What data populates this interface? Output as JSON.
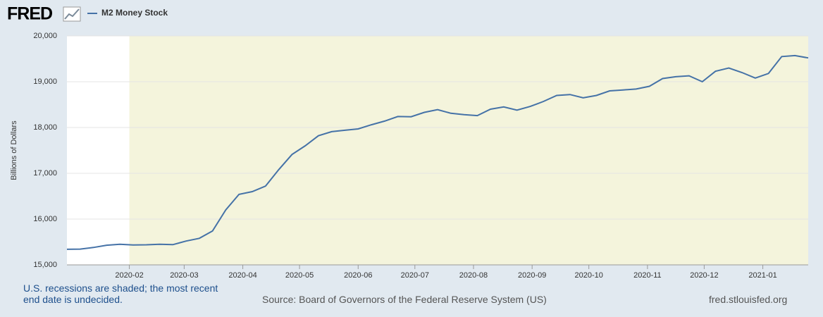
{
  "logo": "FRED",
  "chart_data": {
    "type": "line",
    "y_label": "Billions of Dollars",
    "x": [
      "2019-12-30",
      "2020-01-06",
      "2020-01-13",
      "2020-01-20",
      "2020-01-27",
      "2020-02-03",
      "2020-02-10",
      "2020-02-17",
      "2020-02-24",
      "2020-03-02",
      "2020-03-09",
      "2020-03-16",
      "2020-03-23",
      "2020-03-30",
      "2020-04-06",
      "2020-04-13",
      "2020-04-20",
      "2020-04-27",
      "2020-05-04",
      "2020-05-11",
      "2020-05-18",
      "2020-05-25",
      "2020-06-01",
      "2020-06-08",
      "2020-06-15",
      "2020-06-22",
      "2020-06-29",
      "2020-07-06",
      "2020-07-13",
      "2020-07-20",
      "2020-07-27",
      "2020-08-03",
      "2020-08-10",
      "2020-08-17",
      "2020-08-24",
      "2020-08-31",
      "2020-09-07",
      "2020-09-14",
      "2020-09-21",
      "2020-09-28",
      "2020-10-05",
      "2020-10-12",
      "2020-10-19",
      "2020-10-26",
      "2020-11-02",
      "2020-11-09",
      "2020-11-16",
      "2020-11-23",
      "2020-11-30",
      "2020-12-07",
      "2020-12-14",
      "2020-12-21",
      "2020-12-28",
      "2021-01-04",
      "2021-01-11",
      "2021-01-18",
      "2021-01-25"
    ],
    "series": [
      {
        "name": "M2 Money Stock",
        "color": "#4572a7",
        "values": [
          15340,
          15345,
          15380,
          15430,
          15450,
          15435,
          15438,
          15450,
          15442,
          15520,
          15580,
          15740,
          16200,
          16540,
          16600,
          16720,
          17080,
          17410,
          17600,
          17820,
          17910,
          17940,
          17970,
          18060,
          18140,
          18240,
          18235,
          18330,
          18390,
          18310,
          18280,
          18260,
          18400,
          18450,
          18380,
          18460,
          18570,
          18700,
          18720,
          18650,
          18700,
          18800,
          18820,
          18840,
          18900,
          19070,
          19110,
          19130,
          19000,
          19230,
          19300,
          19200,
          19080,
          19180,
          19550,
          19570,
          19520
        ]
      }
    ],
    "xlim": [
      "2019-12-30",
      "2021-01-25"
    ],
    "xticks": [
      "2020-02",
      "2020-03",
      "2020-04",
      "2020-05",
      "2020-06",
      "2020-07",
      "2020-08",
      "2020-09",
      "2020-10",
      "2020-11",
      "2020-12",
      "2021-01"
    ],
    "ylim": [
      15000,
      20000
    ],
    "yticks": [
      {
        "value": 15000,
        "label": "15,000"
      },
      {
        "value": 16000,
        "label": "16,000"
      },
      {
        "value": 17000,
        "label": "17,000"
      },
      {
        "value": 18000,
        "label": "18,000"
      },
      {
        "value": 19000,
        "label": "19,000"
      },
      {
        "value": 20000,
        "label": "20,000"
      }
    ],
    "grid": true,
    "recession_start": "2020-02",
    "recession_color": "#f4f4dc"
  },
  "footer": {
    "recession_note": "U.S. recessions are shaded; the most recent end date is undecided.",
    "source": "Source: Board of Governors of the Federal Reserve System (US)",
    "site": "fred.stlouisfed.org"
  }
}
